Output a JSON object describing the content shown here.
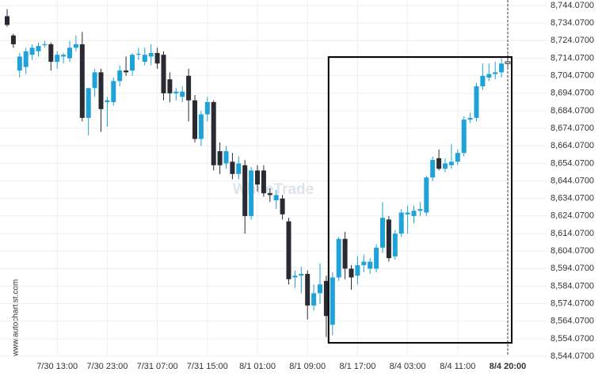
{
  "chart_data": {
    "type": "candlestick",
    "watermark": "WhiteTrade",
    "source": "www.autochartist.com",
    "categories": [
      null,
      null,
      null,
      null,
      null,
      null,
      null,
      null,
      "7/30 13:00",
      null,
      null,
      null,
      null,
      null,
      null,
      null,
      "7/30 23:00",
      null,
      null,
      null,
      null,
      null,
      null,
      null,
      "7/31 07:00",
      null,
      null,
      null,
      null,
      null,
      null,
      null,
      "7/31 15:00",
      null,
      null,
      null,
      null,
      null,
      null,
      null,
      "8/1 01:00",
      null,
      null,
      null,
      null,
      null,
      null,
      null,
      "8/1 09:00",
      null,
      null,
      null,
      null,
      null,
      null,
      null,
      "8/1 17:00",
      null,
      null,
      null,
      null,
      null,
      null,
      null,
      "8/4 03:00",
      null,
      null,
      null,
      null,
      null,
      null,
      null,
      "8/4 11:00",
      null,
      null,
      null,
      null,
      null,
      null,
      null,
      "8/4 20:00"
    ],
    "open": [
      8738,
      8727,
      8707,
      8709,
      8716,
      8718,
      8721.5,
      8722,
      8712,
      8715,
      8714,
      8720,
      8722,
      8680,
      8697,
      8706,
      8689,
      8689,
      8701,
      8707,
      8707,
      8716,
      8712,
      8715,
      8717,
      8716,
      8702,
      8694,
      8692,
      8704,
      8690,
      8668,
      8682,
      8689,
      8661,
      8654,
      8655,
      8648,
      8653,
      8624,
      8650,
      8650,
      8637,
      8633,
      8634,
      8621,
      8589,
      8590,
      8591,
      8573,
      8580,
      8587,
      8562,
      8589,
      8611,
      8594,
      8590,
      8596,
      8594,
      8594,
      8606,
      8622,
      8601,
      8614,
      8625,
      8624,
      8627,
      8626,
      8646,
      8657,
      8651,
      8653,
      8655,
      8660,
      8679,
      8680,
      8698,
      8703,
      8705,
      8706,
      8711
    ],
    "high": [
      8742,
      8728,
      8717,
      8720,
      8722,
      8723,
      8724,
      8723,
      8718,
      8717,
      8724,
      8727,
      8729,
      8697,
      8708,
      8708,
      8692,
      8703,
      8710,
      8715,
      8717,
      8720,
      8720,
      8722,
      8720,
      8718,
      8706,
      8697,
      8698,
      8708,
      8693,
      8684,
      8692,
      8690,
      8666,
      8664,
      8660,
      8658,
      8656,
      8652,
      8653,
      8653,
      8640,
      8639,
      8636,
      8623,
      8593,
      8595,
      8593,
      8585,
      8597,
      8590,
      8592,
      8612,
      8615,
      8596,
      8601,
      8602,
      8600,
      8608,
      8632,
      8624,
      8616,
      8628,
      8630,
      8630,
      8632,
      8647,
      8658,
      8662,
      8657,
      8665,
      8662,
      8681,
      8683,
      8700,
      8711,
      8711,
      8712,
      8714,
      8716
    ],
    "low": [
      8732,
      8720,
      8703,
      8705,
      8713,
      8715,
      8720,
      8707,
      8708,
      8711,
      8712,
      8718,
      8678,
      8670,
      8692,
      8672,
      8675,
      8687,
      8698,
      8704,
      8704,
      8713,
      8710,
      8710,
      8708,
      8690,
      8689,
      8690,
      8689,
      8678,
      8666,
      8664,
      8678,
      8650,
      8648,
      8651,
      8645,
      8645,
      8614,
      8622,
      8638,
      8635,
      8632,
      8628,
      8622,
      8585,
      8583,
      8580,
      8565,
      8570,
      8574,
      8555,
      8556,
      8587,
      8588,
      8582,
      8585,
      8592,
      8591,
      8592,
      8603,
      8598,
      8599,
      8612,
      8614,
      8620,
      8624,
      8624,
      8644,
      8650,
      8649,
      8651,
      8653,
      8658,
      8677,
      8678,
      8696,
      8701,
      8702,
      8703,
      8709
    ],
    "close": [
      8733,
      8722,
      8715,
      8718,
      8720,
      8721,
      8722,
      8712,
      8716,
      8716,
      8720,
      8722,
      8680,
      8697,
      8706,
      8685,
      8690,
      8701,
      8707,
      8706,
      8716,
      8716.5,
      8716,
      8717,
      8711,
      8694,
      8694,
      8695,
      8695,
      8690,
      8668,
      8682,
      8689,
      8653,
      8653,
      8661,
      8648,
      8654,
      8624,
      8650,
      8642,
      8637,
      8636,
      8636,
      8625,
      8588,
      8590,
      8591,
      8573,
      8580,
      8585,
      8567,
      8589,
      8611,
      8594,
      8589,
      8596,
      8598,
      8598,
      8606,
      8623,
      8600,
      8614,
      8626,
      8626,
      8627,
      8628,
      8646,
      8656,
      8651,
      8654,
      8655,
      8660,
      8679,
      8680,
      8698,
      8704,
      8705,
      8706,
      8711,
      8712
    ],
    "up_color": "#1fa2d8",
    "down_color": "#2a2a33",
    "current_color": "#ffffff",
    "range_box": {
      "start": 52,
      "high": 8714.7,
      "low": 8551.7
    },
    "ylim": [
      8544.07,
      8744.07
    ],
    "yticks": [
      {
        "value": 8544.07,
        "label": "8,544.0700"
      },
      {
        "value": 8554.07,
        "label": "8,554.0700"
      },
      {
        "value": 8564.07,
        "label": "8,564.0700"
      },
      {
        "value": 8574.07,
        "label": "8,574.0700"
      },
      {
        "value": 8584.07,
        "label": "8,584.0700"
      },
      {
        "value": 8594.07,
        "label": "8,594.0700"
      },
      {
        "value": 8604.07,
        "label": "8,604.0700"
      },
      {
        "value": 8614.07,
        "label": "8,614.0700"
      },
      {
        "value": 8624.07,
        "label": "8,624.0700"
      },
      {
        "value": 8634.07,
        "label": "8,634.0700"
      },
      {
        "value": 8644.07,
        "label": "8,644.0700"
      },
      {
        "value": 8654.07,
        "label": "8,654.0700"
      },
      {
        "value": 8664.07,
        "label": "8,664.0700"
      },
      {
        "value": 8674.07,
        "label": "8,674.0700"
      },
      {
        "value": 8684.07,
        "label": "8,684.0700"
      },
      {
        "value": 8694.07,
        "label": "8,694.0700"
      },
      {
        "value": 8704.07,
        "label": "8,704.0700"
      },
      {
        "value": 8714.07,
        "label": "8,714.0700"
      },
      {
        "value": 8724.07,
        "label": "8,724.0700"
      },
      {
        "value": 8734.07,
        "label": "8,734.0700"
      },
      {
        "value": 8744.07,
        "label": "8,744.0700"
      }
    ],
    "grid": true
  }
}
